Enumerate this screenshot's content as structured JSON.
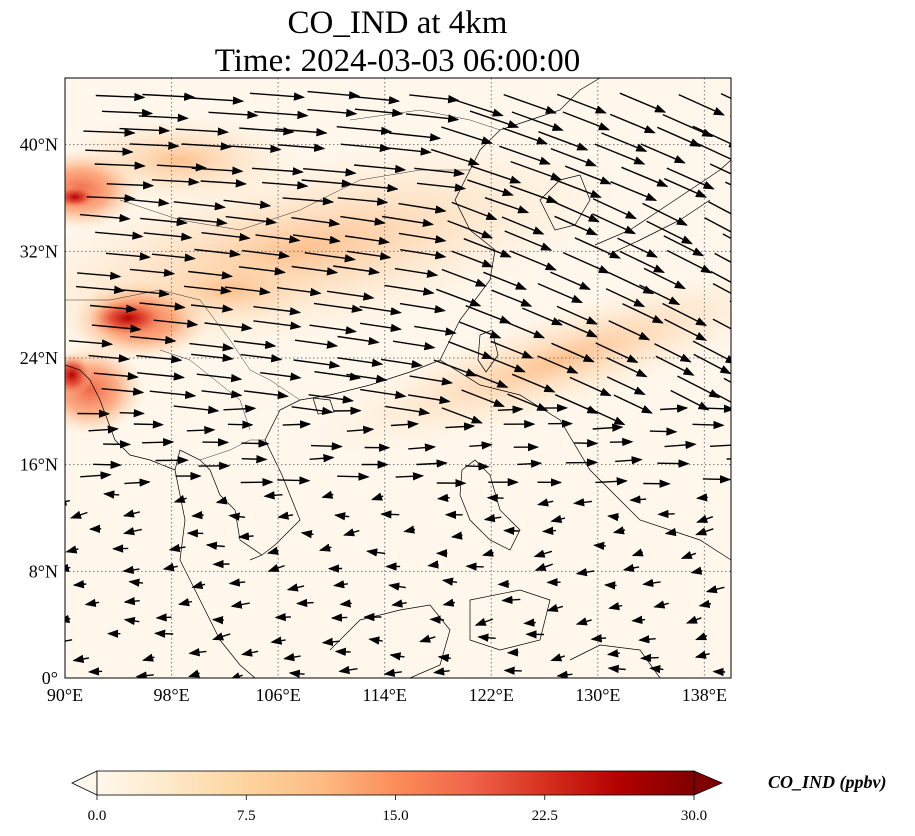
{
  "title_line1": "CO_IND at 4km",
  "title_line2": "Time: 2024-03-03 06:00:00",
  "map": {
    "lon_range": [
      90,
      140
    ],
    "lat_range": [
      0,
      45
    ],
    "lon_ticks": [
      {
        "value": 90,
        "label": "90°E"
      },
      {
        "value": 98,
        "label": "98°E"
      },
      {
        "value": 106,
        "label": "106°E"
      },
      {
        "value": 114,
        "label": "114°E"
      },
      {
        "value": 122,
        "label": "122°E"
      },
      {
        "value": 130,
        "label": "130°E"
      },
      {
        "value": 138,
        "label": "138°E"
      }
    ],
    "lat_ticks": [
      {
        "value": 0,
        "label": "0°"
      },
      {
        "value": 8,
        "label": "8°N"
      },
      {
        "value": 16,
        "label": "16°N"
      },
      {
        "value": 24,
        "label": "24°N"
      },
      {
        "value": 32,
        "label": "32°N"
      },
      {
        "value": 40,
        "label": "40°N"
      }
    ],
    "gridlines": true
  },
  "colorbar": {
    "label": "CO_IND (ppbv)",
    "colormap": "OrRd",
    "min": 0,
    "max": 30,
    "extend": "both",
    "ticks": [
      {
        "value": 0,
        "label": "0.0"
      },
      {
        "value": 7.5,
        "label": "7.5"
      },
      {
        "value": 15,
        "label": "15.0"
      },
      {
        "value": 22.5,
        "label": "22.5"
      },
      {
        "value": 30,
        "label": "30.0"
      }
    ],
    "colors": [
      "#fff7ec",
      "#fee8c8",
      "#fdd49e",
      "#fdbb84",
      "#fc8d59",
      "#ef6548",
      "#d7301f",
      "#b30000",
      "#7f0000"
    ]
  }
}
